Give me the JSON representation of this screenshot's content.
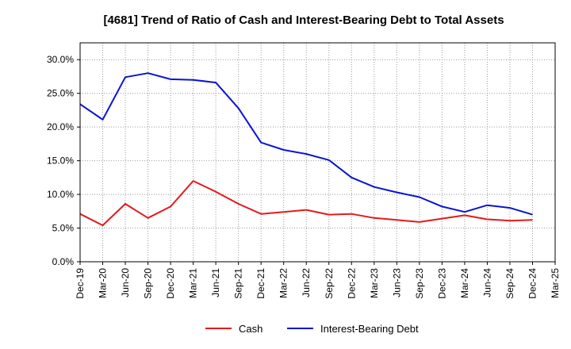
{
  "chart_data": {
    "type": "line",
    "title": "[4681]  Trend of Ratio of Cash and Interest-Bearing Debt to Total Assets",
    "xlabel": "",
    "ylabel": "",
    "x_ticks": [
      "Dec-19",
      "Mar-20",
      "Jun-20",
      "Sep-20",
      "Dec-20",
      "Mar-21",
      "Jun-21",
      "Sep-21",
      "Dec-21",
      "Mar-22",
      "Jun-22",
      "Sep-22",
      "Dec-22",
      "Mar-23",
      "Jun-23",
      "Sep-23",
      "Dec-23",
      "Mar-24",
      "Jun-24",
      "Sep-24",
      "Dec-24",
      "Mar-25"
    ],
    "x": [
      "Dec-19",
      "Mar-20",
      "Jun-20",
      "Sep-20",
      "Dec-20",
      "Mar-21",
      "Jun-21",
      "Sep-21",
      "Dec-21",
      "Mar-22",
      "Jun-22",
      "Sep-22",
      "Dec-22",
      "Mar-23",
      "Jun-23",
      "Sep-23",
      "Dec-23",
      "Mar-24",
      "Jun-24",
      "Sep-24",
      "Dec-24"
    ],
    "y_ticks": [
      "0.0%",
      "5.0%",
      "10.0%",
      "15.0%",
      "20.0%",
      "25.0%",
      "30.0%"
    ],
    "ylim": [
      0,
      32.5
    ],
    "grid": true,
    "legend_position": "bottom",
    "series": [
      {
        "name": "Cash",
        "color": "#e31a1c",
        "values": [
          7.1,
          5.4,
          8.6,
          6.5,
          8.2,
          12.0,
          10.4,
          8.6,
          7.1,
          7.4,
          7.7,
          7.0,
          7.1,
          6.5,
          6.2,
          5.9,
          6.4,
          6.9,
          6.3,
          6.1,
          6.2
        ]
      },
      {
        "name": "Interest-Bearing Debt",
        "color": "#0a14d2",
        "values": [
          23.4,
          21.1,
          27.4,
          28.0,
          27.1,
          27.0,
          26.6,
          22.8,
          17.7,
          16.6,
          16.0,
          15.1,
          12.5,
          11.1,
          10.3,
          9.6,
          8.2,
          7.4,
          8.4,
          8.0,
          7.0
        ]
      }
    ]
  }
}
